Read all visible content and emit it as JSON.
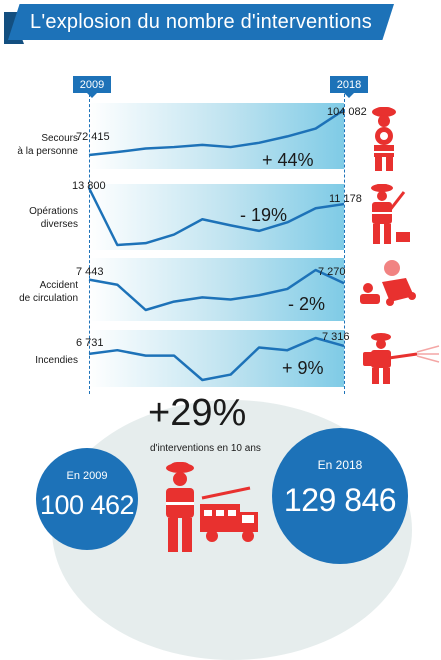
{
  "title": "L'explosion du nombre d'interventions",
  "colors": {
    "accent": "#1d72b8",
    "firefighter_red": "#e8312f",
    "panel_light": "#bfe3f0"
  },
  "year_start_label": "2009",
  "year_end_label": "2018",
  "chart_data": {
    "type": "line",
    "x_range": [
      "2009",
      "2018"
    ],
    "series": [
      {
        "name": "Secours à la personne",
        "start_label": "72 415",
        "end_label": "104 082",
        "change_label": "+ 44%",
        "values": [
          72415,
          74500,
          77000,
          78000,
          79500,
          78000,
          81000,
          85500,
          91000,
          104082
        ]
      },
      {
        "name": "Opérations diverses",
        "start_label": "13 800",
        "end_label": "11 178",
        "change_label": "- 19%",
        "values": [
          13800,
          4500,
          4800,
          6200,
          8700,
          7700,
          6800,
          8200,
          10500,
          11178
        ]
      },
      {
        "name": "Accident de circulation",
        "start_label": "7 443",
        "end_label": "7 270",
        "change_label": "- 2%",
        "values": [
          7443,
          7200,
          6000,
          6400,
          6600,
          6500,
          6700,
          7000,
          7900,
          7270
        ]
      },
      {
        "name": "Incendies",
        "start_label": "6 731",
        "end_label": "7 316",
        "change_label": "+ 9%",
        "values": [
          6731,
          7000,
          6600,
          6600,
          4800,
          5200,
          7200,
          7000,
          7900,
          7316
        ]
      }
    ]
  },
  "rows": [
    {
      "label_line1": "Secours",
      "label_line2": "à la personne"
    },
    {
      "label_line1": "Opérations",
      "label_line2": "diverses"
    },
    {
      "label_line1": "Accident",
      "label_line2": "de circulation"
    },
    {
      "label_line1": "Incendies",
      "label_line2": ""
    }
  ],
  "summary": {
    "total_change": "+29%",
    "caption": "d'interventions en 10 ans",
    "left": {
      "year_label": "En 2009",
      "value": "100 462"
    },
    "right": {
      "year_label": "En 2018",
      "value": "129 846"
    }
  },
  "icons": [
    "firefighter-icon",
    "firefighter-axe-icon",
    "car-accident-icon",
    "hose-icon",
    "firefighter-truck-icon"
  ]
}
